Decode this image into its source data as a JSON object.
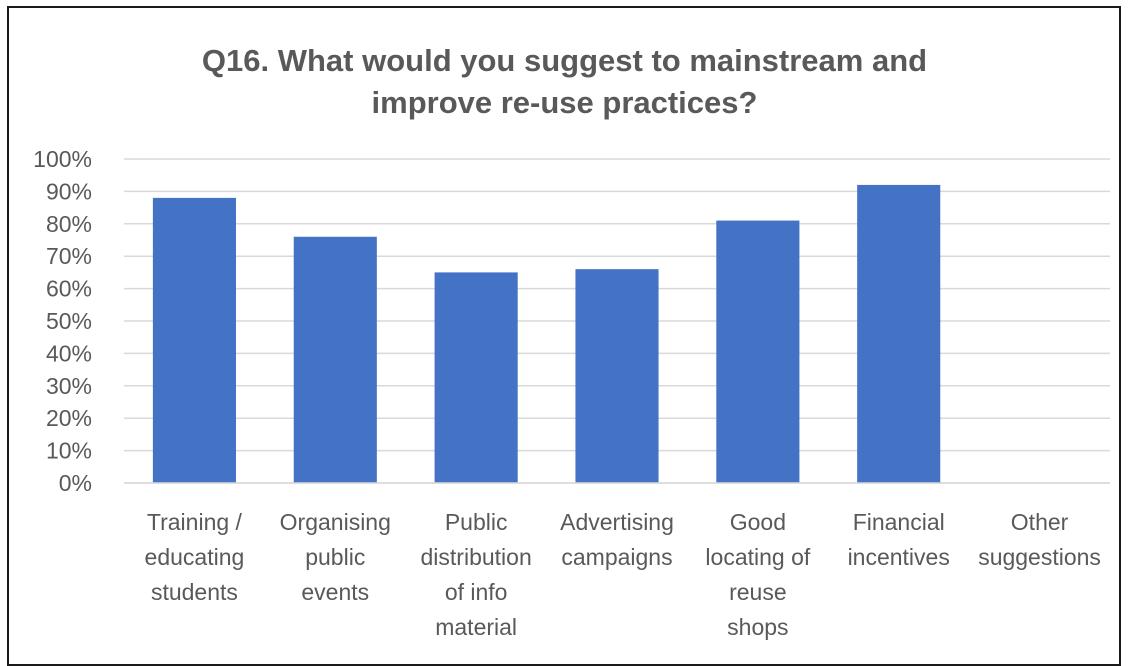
{
  "chart_data": {
    "type": "bar",
    "title_lines": [
      "Q16. What would you suggest to mainstream and",
      "improve re-use practices?"
    ],
    "categories": [
      [
        "Training /",
        "educating",
        "students"
      ],
      [
        "Organising",
        "public",
        "events"
      ],
      [
        "Public",
        "distribution",
        "of info",
        "material"
      ],
      [
        "Advertising",
        "campaigns"
      ],
      [
        "Good",
        "locating of",
        "reuse",
        "shops"
      ],
      [
        "Financial",
        "incentives"
      ],
      [
        "Other",
        "suggestions"
      ]
    ],
    "values": [
      88,
      76,
      65,
      66,
      81,
      92,
      0
    ],
    "ylim": [
      0,
      100
    ],
    "yticks": [
      "0%",
      "10%",
      "20%",
      "30%",
      "40%",
      "50%",
      "60%",
      "70%",
      "80%",
      "90%",
      "100%"
    ],
    "grid": true,
    "colors": {
      "bar": "#4472C4",
      "grid": "#D9D9D9",
      "text": "#595959"
    }
  }
}
